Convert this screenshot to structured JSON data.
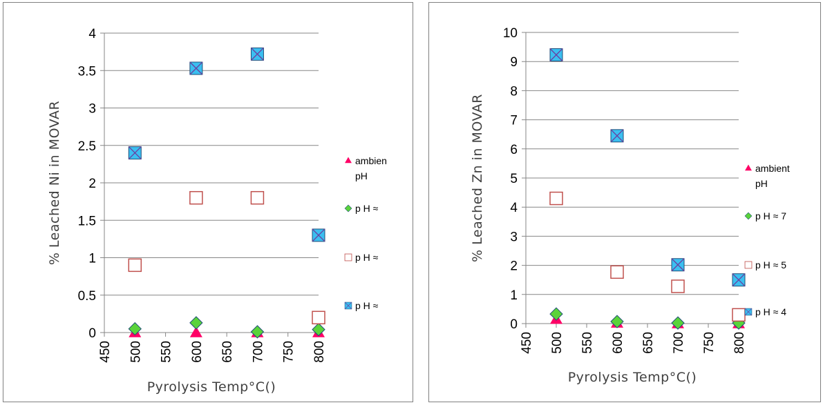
{
  "chart_data": [
    {
      "type": "scatter",
      "ylabel": "% Leached Ni in MOVAR",
      "xlabel": "Pyrolysis Temp°C()",
      "xlim": [
        450,
        800
      ],
      "ylim": [
        0,
        4
      ],
      "xticks": [
        450,
        500,
        550,
        600,
        650,
        700,
        750,
        800
      ],
      "yticks": [
        0,
        0.5,
        1,
        1.5,
        2,
        2.5,
        3,
        3.5,
        4
      ],
      "grid": "horizontal",
      "legend_position": "right",
      "series": [
        {
          "name": "ambien pH",
          "marker": "triangle",
          "color": "#ff0066",
          "x": [
            500,
            600,
            700,
            800
          ],
          "y": [
            0,
            0,
            0,
            0
          ]
        },
        {
          "name": "p H ≈",
          "marker": "diamond",
          "color": "#5ad33a",
          "x": [
            500,
            600,
            700,
            800
          ],
          "y": [
            0.05,
            0.13,
            0.01,
            0.04
          ]
        },
        {
          "name": "p H ≈",
          "marker": "square-open",
          "color": "#c0504d",
          "x": [
            500,
            600,
            700,
            800
          ],
          "y": [
            0.9,
            1.8,
            1.8,
            0.2
          ]
        },
        {
          "name": "p H ≈",
          "marker": "square-x",
          "color": "#3bbff0",
          "x": [
            500,
            600,
            700,
            800
          ],
          "y": [
            2.4,
            3.53,
            3.72,
            1.3
          ]
        }
      ]
    },
    {
      "type": "scatter",
      "ylabel": "% Leached Zn in MOVAR",
      "xlabel": "Pyrolysis Temp°C()",
      "xlim": [
        450,
        800
      ],
      "ylim": [
        0,
        10
      ],
      "xticks": [
        450,
        500,
        550,
        600,
        650,
        700,
        750,
        800
      ],
      "yticks": [
        0,
        1,
        2,
        3,
        4,
        5,
        6,
        7,
        8,
        9,
        10
      ],
      "grid": "horizontal",
      "legend_position": "right",
      "series": [
        {
          "name": "ambient pH",
          "marker": "triangle",
          "color": "#ff0066",
          "x": [
            500,
            600,
            700,
            800
          ],
          "y": [
            0.15,
            0.02,
            0,
            0
          ]
        },
        {
          "name": "p H ≈ 7",
          "marker": "diamond",
          "color": "#5ad33a",
          "x": [
            500,
            600,
            700,
            800
          ],
          "y": [
            0.33,
            0.07,
            0.02,
            0.02
          ]
        },
        {
          "name": "p H ≈ 5",
          "marker": "square-open",
          "color": "#c0504d",
          "x": [
            500,
            600,
            700,
            800
          ],
          "y": [
            4.3,
            1.77,
            1.28,
            0.3
          ]
        },
        {
          "name": "p H ≈ 4",
          "marker": "square-x",
          "color": "#3bbff0",
          "x": [
            500,
            600,
            700,
            800
          ],
          "y": [
            9.23,
            6.45,
            2.02,
            1.5
          ]
        }
      ]
    }
  ]
}
